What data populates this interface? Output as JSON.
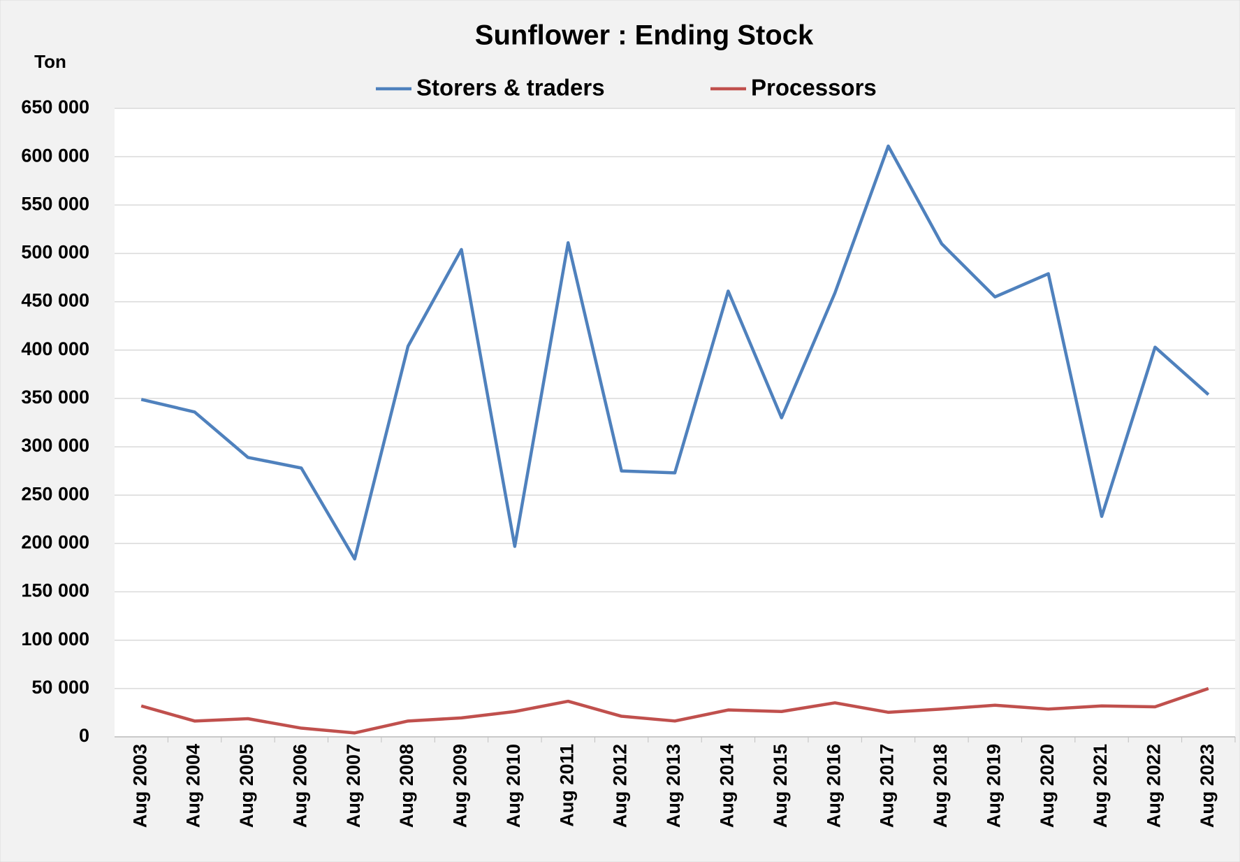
{
  "chart_data": {
    "type": "line",
    "title": "Sunflower : Ending Stock",
    "y_label": "Ton",
    "categories": [
      "Aug 2003",
      "Aug 2004",
      "Aug 2005",
      "Aug 2006",
      "Aug 2007",
      "Aug 2008",
      "Aug 2009",
      "Aug 2010",
      "Aug 2011",
      "Aug 2012",
      "Aug 2013",
      "Aug 2014",
      "Aug 2015",
      "Aug 2016",
      "Aug 2017",
      "Aug 2018",
      "Aug 2019",
      "Aug 2020",
      "Aug 2021",
      "Aug 2022",
      "Aug 2023"
    ],
    "series": [
      {
        "name": "Storers & traders",
        "color": "#4f81bd",
        "values": [
          349000,
          336000,
          289000,
          278000,
          184000,
          404000,
          504000,
          197000,
          511000,
          275000,
          273000,
          461000,
          330000,
          459000,
          611000,
          510000,
          455000,
          479000,
          228000,
          403000,
          354000
        ]
      },
      {
        "name": "Processors",
        "color": "#c0504d",
        "values": [
          32000,
          16400,
          18800,
          9000,
          4100,
          16400,
          19600,
          26200,
          36800,
          21300,
          16400,
          27800,
          26200,
          35200,
          25400,
          28700,
          32700,
          28700,
          32000,
          31100,
          50000
        ]
      }
    ],
    "ylim": [
      0,
      650000
    ],
    "yticks": [
      0,
      {
        "value": 50000,
        "label": "50 000"
      },
      {
        "value": 100000,
        "label": "100 000"
      },
      {
        "value": 150000,
        "label": "150 000"
      },
      {
        "value": 200000,
        "label": "200 000"
      },
      {
        "value": 250000,
        "label": "250 000"
      },
      {
        "value": 300000,
        "label": "300 000"
      },
      {
        "value": 350000,
        "label": "350 000"
      },
      {
        "value": 400000,
        "label": "400 000"
      },
      {
        "value": 450000,
        "label": "450 000"
      },
      {
        "value": 500000,
        "label": "500 000"
      },
      {
        "value": 550000,
        "label": "550 000"
      },
      {
        "value": 600000,
        "label": "600 000"
      },
      {
        "value": 650000,
        "label": "650 000"
      }
    ],
    "grid": true,
    "legend": "top"
  }
}
